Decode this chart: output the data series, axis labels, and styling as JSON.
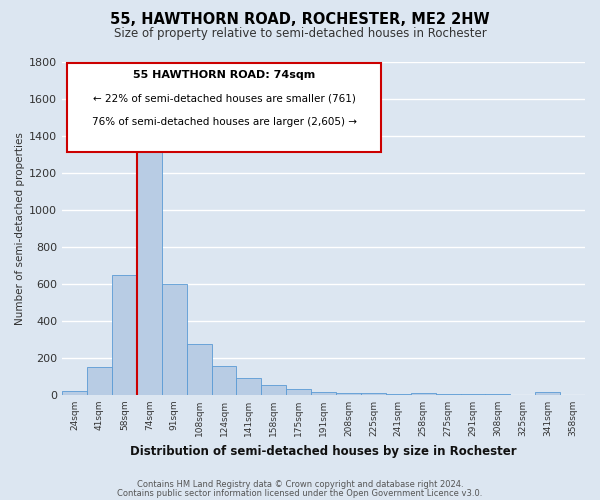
{
  "title": "55, HAWTHORN ROAD, ROCHESTER, ME2 2HW",
  "subtitle": "Size of property relative to semi-detached houses in Rochester",
  "bar_labels": [
    "24sqm",
    "41sqm",
    "58sqm",
    "74sqm",
    "91sqm",
    "108sqm",
    "124sqm",
    "141sqm",
    "158sqm",
    "175sqm",
    "191sqm",
    "208sqm",
    "225sqm",
    "241sqm",
    "258sqm",
    "275sqm",
    "291sqm",
    "308sqm",
    "325sqm",
    "341sqm",
    "358sqm"
  ],
  "bar_values": [
    20,
    150,
    650,
    1390,
    600,
    275,
    155,
    90,
    55,
    30,
    15,
    10,
    10,
    5,
    10,
    5,
    5,
    5,
    0,
    15,
    0
  ],
  "bar_color": "#b8cce4",
  "bar_edge_color": "#5b9bd5",
  "background_color": "#dce6f1",
  "grid_color": "#ffffff",
  "ylabel": "Number of semi-detached properties",
  "xlabel": "Distribution of semi-detached houses by size in Rochester",
  "ylim": [
    0,
    1800
  ],
  "yticks": [
    0,
    200,
    400,
    600,
    800,
    1000,
    1200,
    1400,
    1600,
    1800
  ],
  "red_line_index": 3,
  "annotation_title": "55 HAWTHORN ROAD: 74sqm",
  "annotation_line1": "← 22% of semi-detached houses are smaller (761)",
  "annotation_line2": "76% of semi-detached houses are larger (2,605) →",
  "annotation_box_color": "#ffffff",
  "annotation_border_color": "#cc0000",
  "footer_line1": "Contains HM Land Registry data © Crown copyright and database right 2024.",
  "footer_line2": "Contains public sector information licensed under the Open Government Licence v3.0."
}
